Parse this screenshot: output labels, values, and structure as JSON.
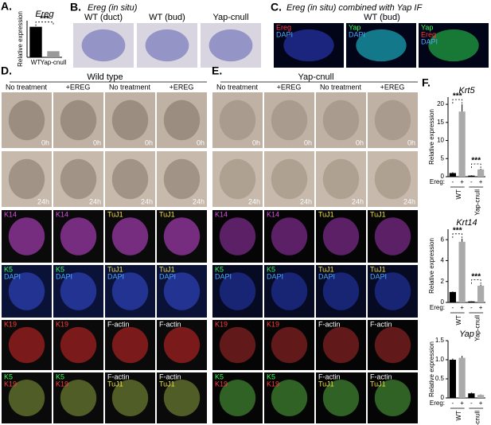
{
  "panel_a": {
    "letter": "A."
  },
  "panel_b": {
    "letter": "B.",
    "title": "Ereg (in situ)",
    "images": [
      {
        "caption": "WT (duct)"
      },
      {
        "caption": "WT (bud)"
      },
      {
        "caption": "Yap-cnull"
      }
    ]
  },
  "panel_c": {
    "letter": "C.",
    "title": "Ereg (in situ) combined with Yap IF",
    "subtitle": "WT (bud)",
    "images": [
      {
        "labels": [
          {
            "text": "Ereg",
            "color": "#ff3b3b"
          },
          {
            "text": "DAPI",
            "color": "#4aa8ff"
          }
        ]
      },
      {
        "labels": [
          {
            "text": "Yap",
            "color": "#3cff5a"
          },
          {
            "text": "DAPI",
            "color": "#4aa8ff"
          }
        ]
      },
      {
        "labels": [
          {
            "text": "Yap",
            "color": "#3cff5a"
          },
          {
            "text": "Ereg",
            "color": "#ff3b3b"
          },
          {
            "text": "DAPI",
            "color": "#4aa8ff"
          }
        ]
      }
    ]
  },
  "panel_d": {
    "letter": "D.",
    "title": "Wild type",
    "columns": [
      "No treatment",
      "+EREG",
      "No treatment",
      "+EREG"
    ],
    "rows": [
      {
        "background": "#bfb1a3",
        "tint": "#8f8174",
        "images": [
          {
            "labels": [
              {
                "text": "0h",
                "color": "#ffffff"
              }
            ]
          },
          {
            "labels": [
              {
                "text": "0h",
                "color": "#ffffff"
              }
            ]
          },
          {
            "labels": [
              {
                "text": "0h",
                "color": "#ffffff"
              }
            ]
          },
          {
            "labels": [
              {
                "text": "0h",
                "color": "#ffffff"
              }
            ]
          }
        ]
      },
      {
        "background": "#c7baac",
        "tint": "#948678",
        "images": [
          {
            "labels": [
              {
                "text": "24h",
                "color": "#ffffff"
              }
            ]
          },
          {
            "labels": [
              {
                "text": "24h",
                "color": "#ffffff"
              }
            ]
          },
          {
            "labels": [
              {
                "text": "24h",
                "color": "#ffffff"
              }
            ]
          },
          {
            "labels": [
              {
                "text": "24h",
                "color": "#ffffff"
              }
            ]
          }
        ]
      },
      {
        "background": "#0a0a0a",
        "tint": "#9b3aa8",
        "images": [
          {
            "labels": [
              {
                "text": "K14",
                "color": "#d74fe0"
              }
            ]
          },
          {
            "labels": [
              {
                "text": "K14",
                "color": "#d74fe0"
              }
            ]
          },
          {
            "labels": [
              {
                "text": "TuJ1",
                "color": "#f0e040"
              }
            ]
          },
          {
            "labels": [
              {
                "text": "TuJ1",
                "color": "#f0e040"
              }
            ]
          }
        ]
      },
      {
        "background": "#0b1238",
        "tint": "#2b3fb0",
        "images": [
          {
            "labels": [
              {
                "text": "K5",
                "color": "#3cff5a"
              },
              {
                "text": "DAPI",
                "color": "#4aa8ff"
              }
            ]
          },
          {
            "labels": [
              {
                "text": "K5",
                "color": "#3cff5a"
              },
              {
                "text": "DAPI",
                "color": "#4aa8ff"
              }
            ]
          },
          {
            "labels": [
              {
                "text": "TuJ1",
                "color": "#f0e040"
              },
              {
                "text": "DAPI",
                "color": "#4aa8ff"
              }
            ]
          },
          {
            "labels": [
              {
                "text": "TuJ1",
                "color": "#f0e040"
              },
              {
                "text": "DAPI",
                "color": "#4aa8ff"
              }
            ]
          }
        ]
      },
      {
        "background": "#0a0a0a",
        "tint": "#a02020",
        "images": [
          {
            "labels": [
              {
                "text": "K19",
                "color": "#ff3b3b"
              }
            ]
          },
          {
            "labels": [
              {
                "text": "K19",
                "color": "#ff3b3b"
              }
            ]
          },
          {
            "labels": [
              {
                "text": "F-actin",
                "color": "#ffffff"
              }
            ]
          },
          {
            "labels": [
              {
                "text": "F-actin",
                "color": "#ffffff"
              }
            ]
          }
        ]
      },
      {
        "background": "#0a0a0a",
        "tint": "#6a7a30",
        "images": [
          {
            "labels": [
              {
                "text": "K5",
                "color": "#3cff5a"
              },
              {
                "text": "K19",
                "color": "#ff3b3b"
              }
            ]
          },
          {
            "labels": [
              {
                "text": "K5",
                "color": "#3cff5a"
              },
              {
                "text": "K19",
                "color": "#ff3b3b"
              }
            ]
          },
          {
            "labels": [
              {
                "text": "F-actin",
                "color": "#ffffff"
              },
              {
                "text": "TuJ1",
                "color": "#f0e040"
              }
            ]
          },
          {
            "labels": [
              {
                "text": "F-actin",
                "color": "#ffffff"
              },
              {
                "text": "TuJ1",
                "color": "#f0e040"
              }
            ]
          }
        ]
      }
    ]
  },
  "panel_e": {
    "letter": "E.",
    "title": "Yap-cnull",
    "columns": [
      "No treatment",
      "+EREG",
      "No treatment",
      "+EREG"
    ],
    "rows": [
      {
        "background": "#bfb1a3",
        "tint": "#a29486",
        "images": [
          {
            "labels": [
              {
                "text": "0h",
                "color": "#ffffff"
              }
            ]
          },
          {
            "labels": [
              {
                "text": "0h",
                "color": "#ffffff"
              }
            ]
          },
          {
            "labels": [
              {
                "text": "0h",
                "color": "#ffffff"
              }
            ]
          },
          {
            "labels": [
              {
                "text": "0h",
                "color": "#ffffff"
              }
            ]
          }
        ]
      },
      {
        "background": "#c7baac",
        "tint": "#a69888",
        "images": [
          {
            "labels": [
              {
                "text": "24h",
                "color": "#ffffff"
              }
            ]
          },
          {
            "labels": [
              {
                "text": "24h",
                "color": "#ffffff"
              }
            ]
          },
          {
            "labels": [
              {
                "text": "24h",
                "color": "#ffffff"
              }
            ]
          },
          {
            "labels": [
              {
                "text": "24h",
                "color": "#ffffff"
              }
            ]
          }
        ]
      },
      {
        "background": "#050505",
        "tint": "#7a2a88",
        "images": [
          {
            "labels": [
              {
                "text": "K14",
                "color": "#d74fe0"
              }
            ]
          },
          {
            "labels": [
              {
                "text": "K14",
                "color": "#d74fe0"
              }
            ]
          },
          {
            "labels": [
              {
                "text": "TuJ1",
                "color": "#f0e040"
              }
            ]
          },
          {
            "labels": [
              {
                "text": "TuJ1",
                "color": "#f0e040"
              }
            ]
          }
        ]
      },
      {
        "background": "#060a22",
        "tint": "#1f2f90",
        "images": [
          {
            "labels": [
              {
                "text": "K5",
                "color": "#3cff5a"
              },
              {
                "text": "DAPI",
                "color": "#4aa8ff"
              }
            ]
          },
          {
            "labels": [
              {
                "text": "K5",
                "color": "#3cff5a"
              },
              {
                "text": "DAPI",
                "color": "#4aa8ff"
              }
            ]
          },
          {
            "labels": [
              {
                "text": "TuJ1",
                "color": "#f0e040"
              },
              {
                "text": "DAPI",
                "color": "#4aa8ff"
              }
            ]
          },
          {
            "labels": [
              {
                "text": "TuJ1",
                "color": "#f0e040"
              },
              {
                "text": "DAPI",
                "color": "#4aa8ff"
              }
            ]
          }
        ]
      },
      {
        "background": "#050505",
        "tint": "#802020",
        "images": [
          {
            "labels": [
              {
                "text": "K19",
                "color": "#ff3b3b"
              }
            ]
          },
          {
            "labels": [
              {
                "text": "K19",
                "color": "#ff3b3b"
              }
            ]
          },
          {
            "labels": [
              {
                "text": "F-actin",
                "color": "#ffffff"
              }
            ]
          },
          {
            "labels": [
              {
                "text": "F-actin",
                "color": "#ffffff"
              }
            ]
          }
        ]
      },
      {
        "background": "#050505",
        "tint": "#3f8030",
        "images": [
          {
            "labels": [
              {
                "text": "K5",
                "color": "#3cff5a"
              },
              {
                "text": "K19",
                "color": "#ff3b3b"
              }
            ]
          },
          {
            "labels": [
              {
                "text": "K5",
                "color": "#3cff5a"
              },
              {
                "text": "K19",
                "color": "#ff3b3b"
              }
            ]
          },
          {
            "labels": [
              {
                "text": "F-actin",
                "color": "#ffffff"
              },
              {
                "text": "TuJ1",
                "color": "#f0e040"
              }
            ]
          },
          {
            "labels": [
              {
                "text": "F-actin",
                "color": "#ffffff"
              },
              {
                "text": "TuJ1",
                "color": "#f0e040"
              }
            ]
          }
        ]
      }
    ]
  },
  "panel_f": {
    "letter": "F."
  },
  "charts": [
    {
      "type": "bar",
      "title": "Ereg",
      "ylabel": "Relative expression",
      "categories": [
        "WT",
        "Yap-cnull"
      ],
      "values": [
        1,
        0.2
      ],
      "colors": [
        "#000000",
        "#999999"
      ],
      "ylim": [
        0,
        1.2
      ],
      "annotations": [
        "***"
      ]
    },
    {
      "type": "bar",
      "title": "Krt5",
      "ylabel": "Relative expression",
      "xlabel": "Ereg:",
      "categories": [
        "-",
        "+",
        "-",
        "+"
      ],
      "groups": [
        "WT",
        "Yap-cnull"
      ],
      "values": [
        1,
        18,
        0.3,
        2
      ],
      "errors": [
        0.2,
        2,
        0.1,
        0.2
      ],
      "colors": [
        "#000000",
        "#aaaaaa",
        "#000000",
        "#aaaaaa"
      ],
      "ylim": [
        0,
        22
      ],
      "yticks": [
        0,
        5,
        10,
        15,
        20
      ],
      "annotations": [
        "***",
        "***"
      ]
    },
    {
      "type": "bar",
      "title": "Krt14",
      "ylabel": "Relative expression",
      "xlabel": "Ereg:",
      "categories": [
        "-",
        "+",
        "-",
        "+"
      ],
      "groups": [
        "WT",
        "Yap-cnull"
      ],
      "values": [
        1,
        5.8,
        0.1,
        1.6
      ],
      "errors": [
        0.05,
        0.3,
        0.02,
        0.1
      ],
      "colors": [
        "#000000",
        "#aaaaaa",
        "#000000",
        "#aaaaaa"
      ],
      "ylim": [
        0,
        7
      ],
      "yticks": [
        0,
        2,
        4,
        6
      ],
      "annotations": [
        "***",
        "***"
      ]
    },
    {
      "type": "bar",
      "title": "Yap",
      "ylabel": "Relative expression",
      "xlabel": "Ereg:",
      "categories": [
        "-",
        "+",
        "-",
        "+"
      ],
      "groups": [
        "WT",
        "Yap-cnull"
      ],
      "values": [
        1,
        1.05,
        0.12,
        0.08
      ],
      "errors": [
        0.03,
        0.05,
        0.02,
        0.01
      ],
      "colors": [
        "#000000",
        "#aaaaaa",
        "#000000",
        "#aaaaaa"
      ],
      "ylim": [
        0,
        1.5
      ],
      "yticks": [
        0,
        0.5,
        {
          "value": 1,
          "label": "1.0"
        },
        1.5
      ]
    }
  ]
}
